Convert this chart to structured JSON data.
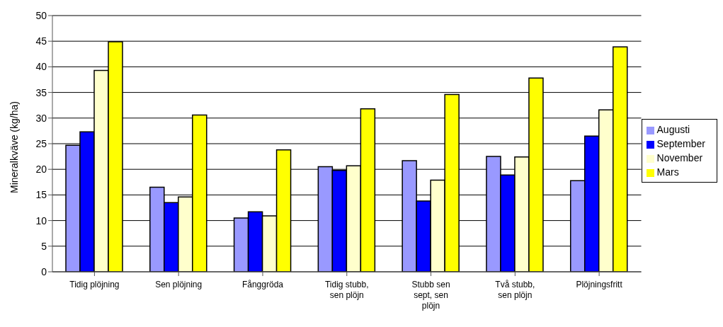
{
  "chart_data": {
    "type": "bar",
    "ylabel": "Mineralkväve (kg/ha)",
    "categories": [
      "Tidig plöjning",
      "Sen plöjning",
      "Fånggröda",
      "Tidig stubb, sen plöjn",
      "Stubb sen sept, sen plöjn",
      "Två stubb, sen plöjn",
      "Plöjningsfritt"
    ],
    "series": [
      {
        "name": "Augusti",
        "color": "#9999ff",
        "values": [
          24.7,
          16.5,
          10.5,
          20.5,
          21.7,
          22.5,
          17.8
        ]
      },
      {
        "name": "September",
        "color": "#0000ff",
        "values": [
          27.3,
          13.5,
          11.7,
          19.8,
          13.8,
          18.9,
          26.5
        ]
      },
      {
        "name": "November",
        "color": "#ffffcc",
        "values": [
          39.3,
          14.6,
          10.9,
          20.7,
          17.9,
          22.4,
          31.6
        ]
      },
      {
        "name": "Mars",
        "color": "#ffff00",
        "values": [
          44.9,
          30.6,
          23.8,
          31.8,
          34.6,
          37.8,
          43.9
        ]
      }
    ],
    "ylim": [
      0,
      50
    ],
    "yticks": [
      0,
      5,
      10,
      15,
      20,
      25,
      30,
      35,
      40,
      45,
      50
    ],
    "grid": "y",
    "legend": "right"
  }
}
